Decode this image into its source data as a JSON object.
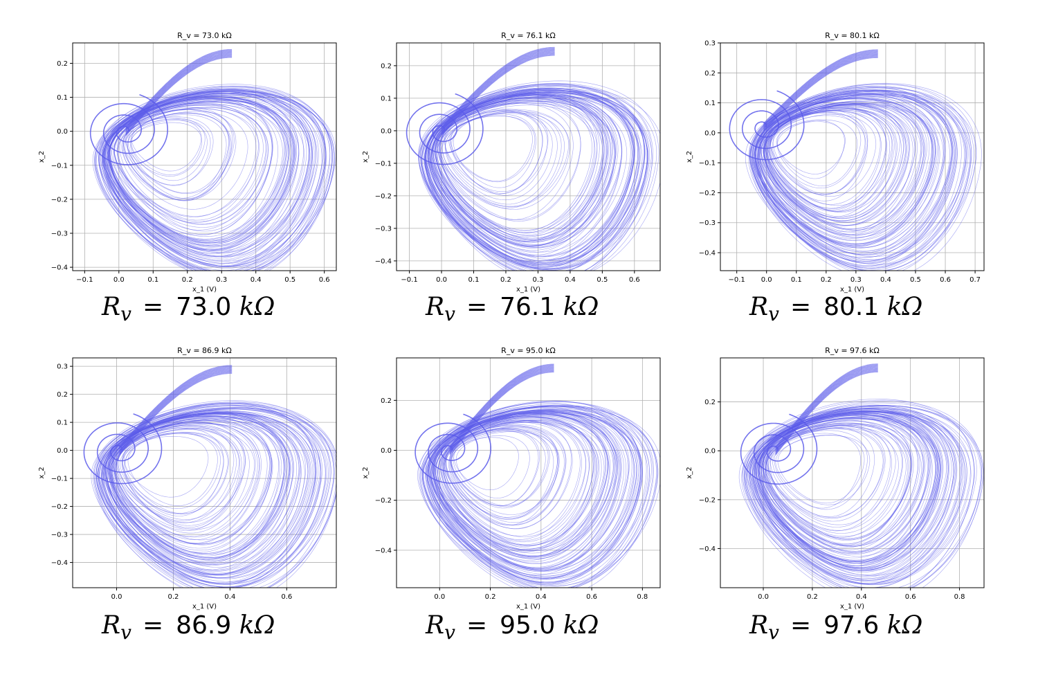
{
  "chart_data": [
    {
      "type": "line",
      "title": "R_v = 73.0 kΩ",
      "xlabel": "x_1 (V)",
      "ylabel": "x_2",
      "xlim": [
        -0.135,
        0.635
      ],
      "ylim": [
        -0.41,
        0.26
      ],
      "xticks": [
        -0.1,
        0.0,
        0.1,
        0.2,
        0.3,
        0.4,
        0.5,
        0.6
      ],
      "xtick_labels": [
        "−0.1",
        "0.0",
        "0.1",
        "0.2",
        "0.3",
        "0.4",
        "0.5",
        "0.6"
      ],
      "yticks": [
        -0.4,
        -0.3,
        -0.2,
        -0.1,
        0.0,
        0.1,
        0.2
      ],
      "ytick_labels": [
        "−0.4",
        "−0.3",
        "−0.2",
        "−0.1",
        "0.0",
        "0.1",
        "0.2"
      ],
      "attractor": {
        "x_min": -0.1,
        "x_max": 0.6,
        "y_min": -0.38,
        "y_max": 0.23,
        "inner_spiral_center": [
          0.02,
          0.0
        ]
      },
      "caption": {
        "symbol": "R",
        "subscript": "v",
        "value": "73.0",
        "unit": "kΩ"
      }
    },
    {
      "type": "line",
      "title": "R_v = 76.1 kΩ",
      "xlabel": "x_1 (V)",
      "ylabel": "x_2",
      "xlim": [
        -0.14,
        0.68
      ],
      "ylim": [
        -0.43,
        0.27
      ],
      "xticks": [
        -0.1,
        0.0,
        0.1,
        0.2,
        0.3,
        0.4,
        0.5,
        0.6
      ],
      "xtick_labels": [
        "−0.1",
        "0.0",
        "0.1",
        "0.2",
        "0.3",
        "0.4",
        "0.5",
        "0.6"
      ],
      "yticks": [
        -0.4,
        -0.3,
        -0.2,
        -0.1,
        0.0,
        0.1,
        0.2
      ],
      "ytick_labels": [
        "−0.4",
        "−0.3",
        "−0.2",
        "−0.1",
        "0.0",
        "0.1",
        "0.2"
      ],
      "attractor": {
        "x_min": -0.1,
        "x_max": 0.64,
        "y_min": -0.4,
        "y_max": 0.245,
        "inner_spiral_center": [
          0.0,
          0.0
        ]
      },
      "caption": {
        "symbol": "R",
        "subscript": "v",
        "value": "76.1",
        "unit": "kΩ"
      }
    },
    {
      "type": "line",
      "title": "R_v = 80.1 kΩ",
      "xlabel": "x_1 (V)",
      "ylabel": "x_2",
      "xlim": [
        -0.155,
        0.73
      ],
      "ylim": [
        -0.46,
        0.3
      ],
      "xticks": [
        -0.1,
        0.0,
        0.1,
        0.2,
        0.3,
        0.4,
        0.5,
        0.6,
        0.7
      ],
      "xtick_labels": [
        "−0.1",
        "0.0",
        "0.1",
        "0.2",
        "0.3",
        "0.4",
        "0.5",
        "0.6",
        "0.7"
      ],
      "yticks": [
        -0.4,
        -0.3,
        -0.2,
        -0.1,
        0.0,
        0.1,
        0.2,
        0.3
      ],
      "ytick_labels": [
        "−0.4",
        "−0.3",
        "−0.2",
        "−0.1",
        "0.0",
        "0.1",
        "0.2",
        "0.3"
      ],
      "attractor": {
        "x_min": -0.1,
        "x_max": 0.68,
        "y_min": -0.42,
        "y_max": 0.265,
        "inner_spiral_center": [
          -0.01,
          0.02
        ]
      },
      "caption": {
        "symbol": "R",
        "subscript": "v",
        "value": "80.1",
        "unit": "kΩ"
      }
    },
    {
      "type": "line",
      "title": "R_v = 86.9 kΩ",
      "xlabel": "x_1 (V)",
      "ylabel": "x_2",
      "xlim": [
        -0.155,
        0.775
      ],
      "ylim": [
        -0.49,
        0.33
      ],
      "xticks": [
        0.0,
        0.2,
        0.4,
        0.6
      ],
      "xtick_labels": [
        "0.0",
        "0.2",
        "0.4",
        "0.6"
      ],
      "yticks": [
        -0.4,
        -0.3,
        -0.2,
        -0.1,
        0.0,
        0.1,
        0.2,
        0.3
      ],
      "ytick_labels": [
        "−0.4",
        "−0.3",
        "−0.2",
        "−0.1",
        "0.0",
        "0.1",
        "0.2",
        "0.3"
      ],
      "attractor": {
        "x_min": -0.12,
        "x_max": 0.74,
        "y_min": -0.455,
        "y_max": 0.29,
        "inner_spiral_center": [
          0.01,
          0.0
        ]
      },
      "caption": {
        "symbol": "R",
        "subscript": "v",
        "value": "86.9",
        "unit": "kΩ"
      }
    },
    {
      "type": "line",
      "title": "R_v = 95.0 kΩ",
      "xlabel": "x_1 (V)",
      "ylabel": "x_2",
      "xlim": [
        -0.17,
        0.87
      ],
      "ylim": [
        -0.55,
        0.37
      ],
      "xticks": [
        0.0,
        0.2,
        0.4,
        0.6,
        0.8
      ],
      "xtick_labels": [
        "0.0",
        "0.2",
        "0.4",
        "0.6",
        "0.8"
      ],
      "yticks": [
        -0.4,
        -0.2,
        0.0,
        0.2
      ],
      "ytick_labels": [
        "−0.4",
        "−0.2",
        "0.0",
        "0.2"
      ],
      "attractor": {
        "x_min": -0.12,
        "x_max": 0.82,
        "y_min": -0.5,
        "y_max": 0.33,
        "inner_spiral_center": [
          0.04,
          0.0
        ]
      },
      "caption": {
        "symbol": "R",
        "subscript": "v",
        "value": "95.0",
        "unit": "kΩ"
      }
    },
    {
      "type": "line",
      "title": "R_v = 97.6 kΩ",
      "xlabel": "x_1 (V)",
      "ylabel": "x_2",
      "xlim": [
        -0.175,
        0.9
      ],
      "ylim": [
        -0.56,
        0.38
      ],
      "xticks": [
        0.0,
        0.2,
        0.4,
        0.6,
        0.8
      ],
      "xtick_labels": [
        "0.0",
        "0.2",
        "0.4",
        "0.6",
        "0.8"
      ],
      "yticks": [
        -0.4,
        -0.2,
        0.0,
        0.2
      ],
      "ytick_labels": [
        "−0.4",
        "−0.2",
        "0.0",
        "0.2"
      ],
      "attractor": {
        "x_min": -0.13,
        "x_max": 0.85,
        "y_min": -0.52,
        "y_max": 0.34,
        "inner_spiral_center": [
          0.05,
          0.0
        ]
      },
      "caption": {
        "symbol": "R",
        "subscript": "v",
        "value": "97.6",
        "unit": "kΩ"
      }
    }
  ],
  "colors": {
    "trajectory": "#5b5bea",
    "grid": "#b0b0b0",
    "axes": "#000000",
    "text": "#000000"
  }
}
